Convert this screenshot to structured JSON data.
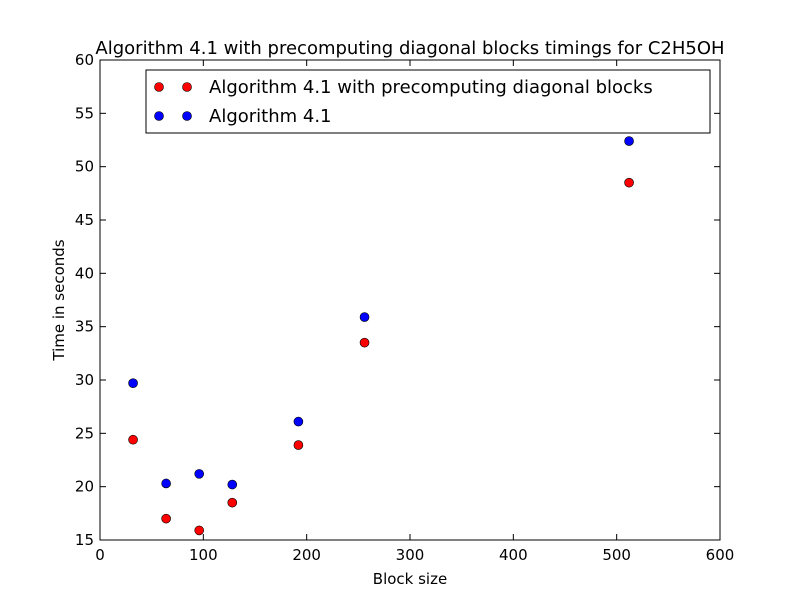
{
  "chart_data": {
    "type": "scatter",
    "title": "Algorithm 4.1 with precomputing diagonal blocks timings for C2H5OH",
    "xlabel": "Block size",
    "ylabel": "Time in seconds",
    "xlim": [
      0,
      600
    ],
    "ylim": [
      15,
      60
    ],
    "xticks": [
      0,
      100,
      200,
      300,
      400,
      500,
      600
    ],
    "yticks": [
      15,
      20,
      25,
      30,
      35,
      40,
      45,
      50,
      55,
      60
    ],
    "grid": false,
    "legend_position": "top-right",
    "series": [
      {
        "name": "Algorithm 4.1 with precomputing diagonal blocks",
        "color": "#ff0000",
        "x": [
          32,
          64,
          96,
          128,
          192,
          256,
          512
        ],
        "y": [
          24.4,
          17.0,
          15.9,
          18.5,
          23.9,
          33.5,
          48.5
        ]
      },
      {
        "name": "Algorithm 4.1",
        "color": "#0000ff",
        "x": [
          32,
          64,
          96,
          128,
          192,
          256,
          512
        ],
        "y": [
          29.7,
          20.3,
          21.2,
          20.2,
          26.1,
          35.9,
          52.4
        ]
      }
    ]
  }
}
